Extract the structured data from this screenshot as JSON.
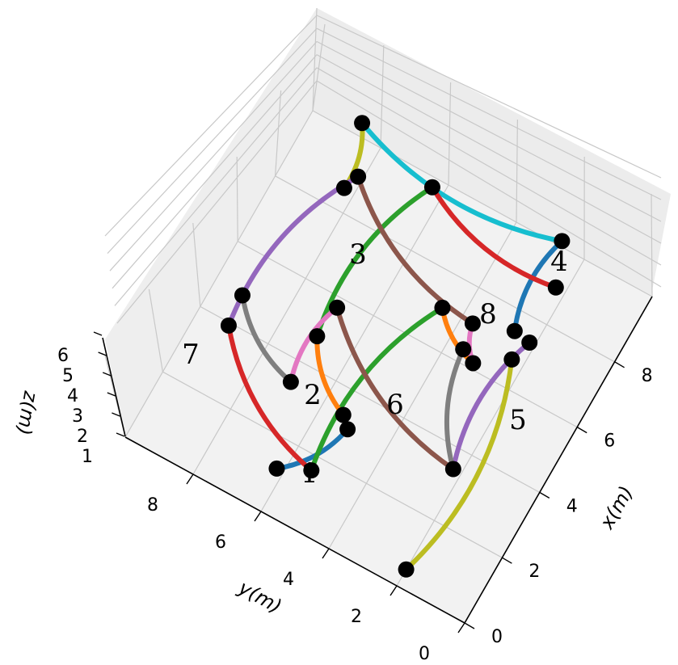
{
  "chart_data": {
    "type": "line3d",
    "title": "",
    "xlabel": "x(m)",
    "ylabel": "y(m)",
    "zlabel": "z(m)",
    "x_ticks": [
      "0",
      "2",
      "4",
      "6",
      "8"
    ],
    "y_ticks": [
      "0",
      "2",
      "4",
      "6",
      "8"
    ],
    "z_ticks": [
      "1",
      "2",
      "3",
      "4",
      "5",
      "6"
    ],
    "grid": true,
    "node_labels": [
      "1",
      "2",
      "3",
      "4",
      "5",
      "6",
      "7",
      "8"
    ],
    "segments": [
      {
        "color": "#bcbd22",
        "points": [
          [
            0.5,
            2.0,
            1.0
          ],
          [
            6.2,
            1.8,
            5.5
          ]
        ]
      },
      {
        "color": "#bcbd22",
        "points": [
          [
            8.6,
            8.3,
            1.0
          ],
          [
            9.8,
            8.2,
            5.5
          ]
        ]
      },
      {
        "color": "#17becf",
        "points": [
          [
            9.8,
            8.2,
            5.5
          ],
          [
            9.6,
            2.2,
            5.5
          ]
        ]
      },
      {
        "color": "#1f77b4",
        "points": [
          [
            9.6,
            2.2,
            5.5
          ],
          [
            7.2,
            2.4,
            3.0
          ]
        ]
      },
      {
        "color": "#1f77b4",
        "points": [
          [
            1.2,
            6.2,
            1.0
          ],
          [
            2.9,
            5.0,
            2.0
          ]
        ]
      },
      {
        "color": "#d62728",
        "points": [
          [
            9.2,
            5.8,
            5.5
          ],
          [
            8.5,
            1.8,
            5.0
          ]
        ]
      },
      {
        "color": "#d62728",
        "points": [
          [
            3.8,
            9.0,
            2.0
          ],
          [
            1.6,
            5.4,
            1.0
          ]
        ]
      },
      {
        "color": "#9467bd",
        "points": [
          [
            8.5,
            7.6,
            5.5
          ],
          [
            3.8,
            9.0,
            2.0
          ]
        ]
      },
      {
        "color": "#9467bd",
        "points": [
          [
            7.0,
            1.8,
            4.0
          ],
          [
            3.2,
            2.0,
            3.0
          ]
        ]
      },
      {
        "color": "#2ca02c",
        "points": [
          [
            9.2,
            5.8,
            5.5
          ],
          [
            4.8,
            7.0,
            1.0
          ]
        ]
      },
      {
        "color": "#2ca02c",
        "points": [
          [
            6.7,
            4.2,
            4.0
          ],
          [
            1.6,
            5.4,
            1.0
          ]
        ]
      },
      {
        "color": "#8c564b",
        "points": [
          [
            8.5,
            7.6,
            5.5
          ],
          [
            6.6,
            3.2,
            5.0
          ]
        ]
      },
      {
        "color": "#8c564b",
        "points": [
          [
            5.6,
            6.8,
            2.0
          ],
          [
            3.2,
            2.0,
            3.0
          ]
        ]
      },
      {
        "color": "#7f7f7f",
        "points": [
          [
            4.8,
            9.2,
            1.0
          ],
          [
            3.4,
            7.0,
            1.0
          ]
        ]
      },
      {
        "color": "#7f7f7f",
        "points": [
          [
            6.0,
            3.2,
            4.0
          ],
          [
            3.2,
            2.0,
            3.0
          ]
        ]
      },
      {
        "color": "#ff7f0e",
        "points": [
          [
            4.8,
            7.0,
            1.0
          ],
          [
            3.3,
            5.4,
            1.0
          ]
        ]
      },
      {
        "color": "#ff7f0e",
        "points": [
          [
            6.7,
            4.2,
            4.0
          ],
          [
            5.8,
            2.8,
            4.0
          ]
        ]
      },
      {
        "color": "#e377c2",
        "points": [
          [
            5.6,
            6.8,
            2.0
          ],
          [
            3.4,
            7.0,
            1.0
          ]
        ]
      },
      {
        "color": "#e377c2",
        "points": [
          [
            6.6,
            3.2,
            5.0
          ],
          [
            5.8,
            2.8,
            4.0
          ]
        ]
      }
    ]
  }
}
